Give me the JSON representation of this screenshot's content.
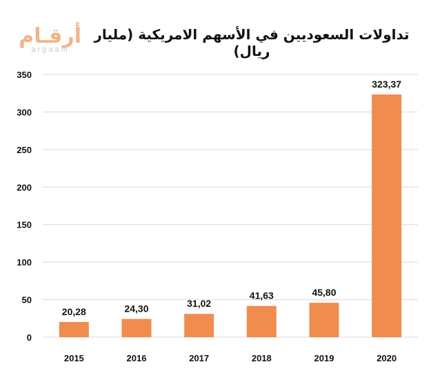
{
  "logo": {
    "arabic": "أرقـام",
    "latin": "argaam"
  },
  "chart_data": {
    "type": "bar",
    "title": "تداولات السعوديين في الأسهم الامريكية (مليار ريال)",
    "categories": [
      "2015",
      "2016",
      "2017",
      "2018",
      "2019",
      "2020"
    ],
    "values": [
      20.28,
      24.3,
      31.02,
      41.63,
      45.8,
      323.37
    ],
    "value_labels": [
      "20,28",
      "24,30",
      "31,02",
      "41,63",
      "45,80",
      "323,37"
    ],
    "y_ticks": [
      "0",
      "50",
      "100",
      "150",
      "200",
      "250",
      "300",
      "350"
    ],
    "ylim": [
      0,
      350
    ],
    "grid": true,
    "legend": "none",
    "colors": {
      "bar": "#f08c4e",
      "grid": "#d9d9d9",
      "text": "#111111"
    }
  }
}
